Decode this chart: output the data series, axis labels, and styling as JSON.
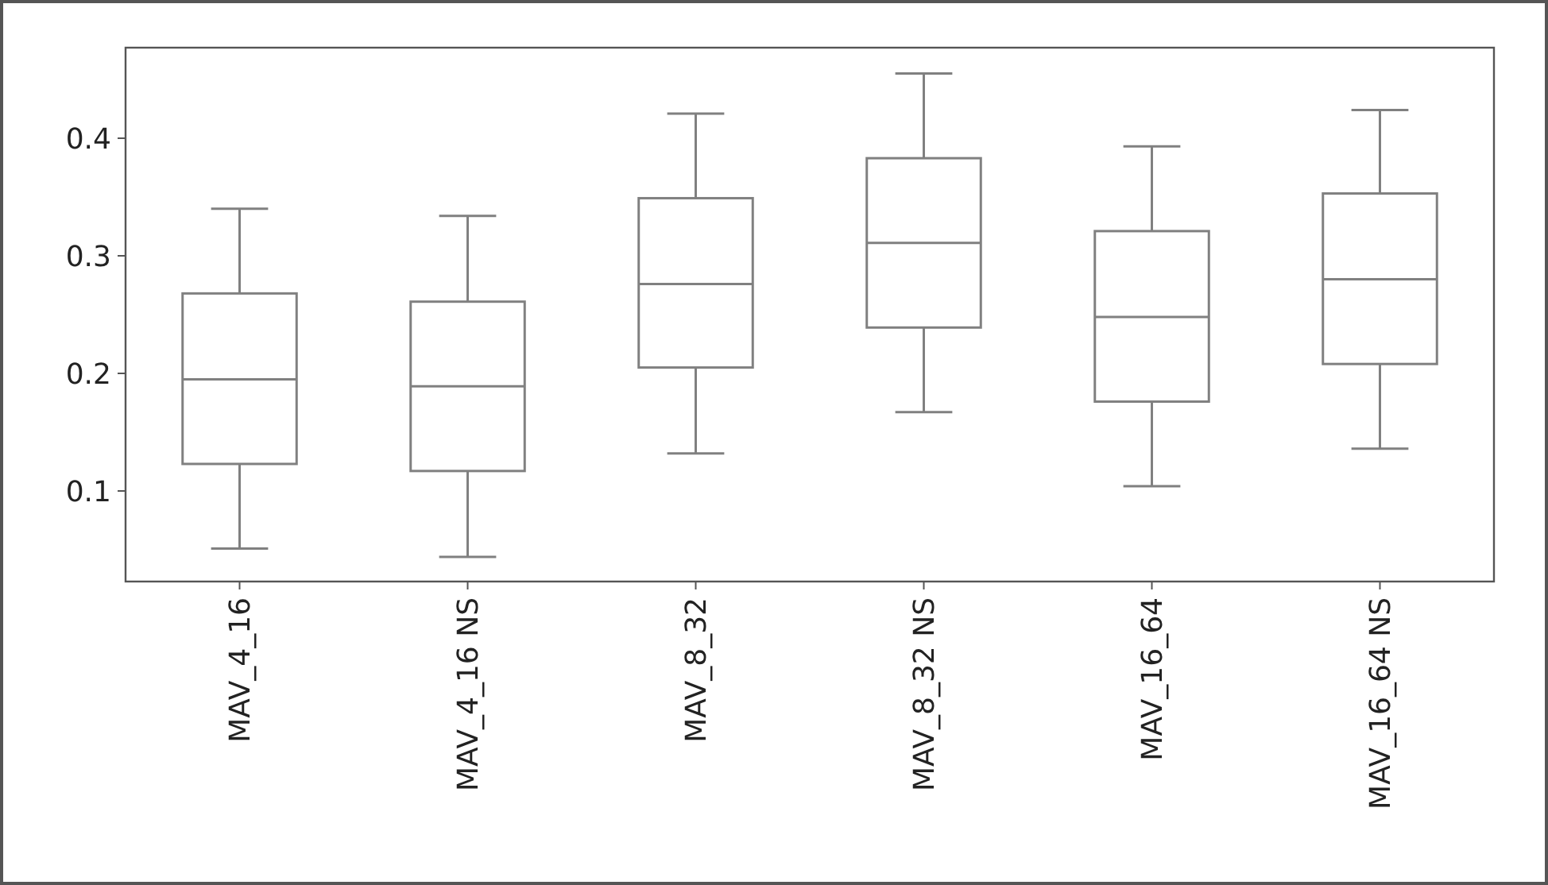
{
  "chart_data": {
    "type": "box",
    "categories": [
      "MAV_4_16",
      "MAV_4_16 NS",
      "MAV_8_32",
      "MAV_8_32 NS",
      "MAV_16_64",
      "MAV_16_64 NS"
    ],
    "color": "#808080",
    "boxes": [
      {
        "low": 0.051,
        "q1": 0.123,
        "median": 0.195,
        "q3": 0.268,
        "high": 0.34
      },
      {
        "low": 0.044,
        "q1": 0.117,
        "median": 0.189,
        "q3": 0.261,
        "high": 0.334
      },
      {
        "low": 0.132,
        "q1": 0.205,
        "median": 0.276,
        "q3": 0.349,
        "high": 0.421
      },
      {
        "low": 0.167,
        "q1": 0.239,
        "median": 0.311,
        "q3": 0.383,
        "high": 0.455
      },
      {
        "low": 0.104,
        "q1": 0.176,
        "median": 0.248,
        "q3": 0.321,
        "high": 0.393
      },
      {
        "low": 0.136,
        "q1": 0.208,
        "median": 0.28,
        "q3": 0.353,
        "high": 0.424
      }
    ],
    "ylim": [
      0.023,
      0.477
    ],
    "yticks": [
      0.1,
      0.2,
      0.3,
      0.4
    ],
    "grid": false
  }
}
